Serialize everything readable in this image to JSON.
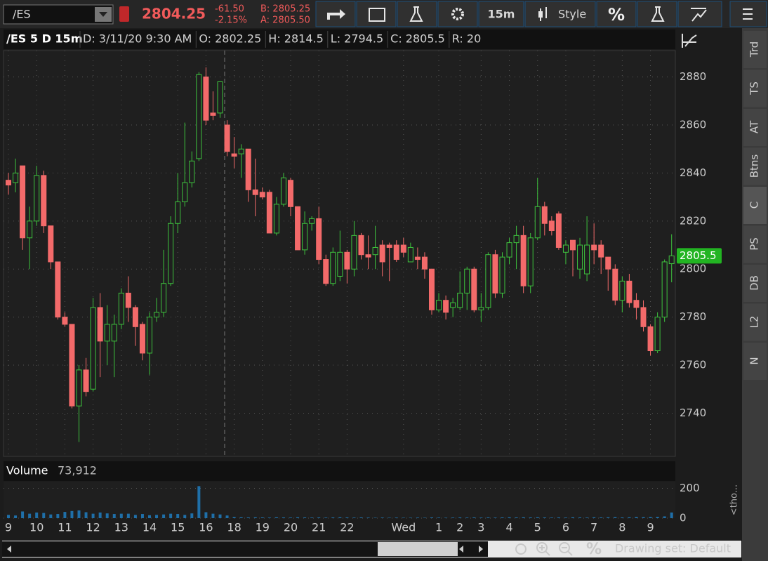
{
  "toolbar": {
    "symbol": "/ES",
    "last": "2804.25",
    "change": "-61.50",
    "change_pct": "-2.15%",
    "bid": "B: 2805.25",
    "ask": "A: 2805.50",
    "interval": "15m",
    "style": "Style",
    "percent": "%"
  },
  "header": {
    "study": "/ES 5 D 15m",
    "items": [
      "D: 3/11/20 9:30 AM",
      "O: 2802.25",
      "H: 2814.5",
      "L: 2794.5",
      "C: 2805.5",
      "R: 20"
    ]
  },
  "side_tabs": [
    "Trd",
    "TS",
    "AT",
    "Btns",
    "C",
    "PS",
    "DB",
    "L2",
    "N"
  ],
  "volume_pane_note": "<tho...",
  "footer": {
    "drawing_set": "Drawing set: Default"
  },
  "chart_data": [
    {
      "type": "candlestick",
      "up_color": "#3ec43e",
      "down_color": "#f36a6a",
      "grid": true,
      "ylim": [
        2722,
        2891
      ],
      "yticks": [
        2740,
        2760,
        2780,
        2800,
        2820,
        2840,
        2860,
        2880
      ],
      "last_price": 2805.5,
      "last_color": "#22b422",
      "categories": [
        "9",
        null,
        null,
        null,
        "10",
        null,
        null,
        null,
        "11",
        null,
        null,
        null,
        "12",
        null,
        null,
        null,
        "13",
        null,
        null,
        null,
        "14",
        null,
        null,
        null,
        "15",
        null,
        null,
        null,
        "16",
        null,
        null,
        null,
        "18",
        null,
        null,
        null,
        "19",
        null,
        null,
        null,
        "20",
        null,
        null,
        null,
        "21",
        null,
        null,
        null,
        "22",
        null,
        null,
        null,
        null,
        null,
        null,
        null,
        "Wed",
        null,
        null,
        null,
        null,
        "1",
        null,
        null,
        "2",
        null,
        null,
        "3",
        null,
        null,
        null,
        "4",
        null,
        null,
        null,
        "5",
        null,
        null,
        null,
        "6",
        null,
        null,
        null,
        "7",
        null,
        null,
        null,
        "8",
        null,
        null,
        null,
        "9",
        null,
        null,
        null
      ],
      "open": [
        2837,
        2836,
        2843,
        2813,
        2820,
        2839,
        2818,
        2803,
        2780,
        2777,
        2743,
        2758,
        2750,
        2784,
        2770,
        2770,
        2777,
        2790,
        2784,
        2777,
        2765,
        2780,
        2782,
        2794,
        2819,
        2828,
        2836,
        2846,
        2880,
        2865,
        2865,
        2860,
        2848,
        2848,
        2850,
        2833,
        2832,
        2832,
        2815,
        2827,
        2837,
        2826,
        2808,
        2819,
        2821,
        2804,
        2794,
        2797,
        2807,
        2800,
        2814,
        2806,
        2806,
        2810,
        2810,
        2810,
        2810,
        2803,
        2805,
        2805,
        2800,
        2783,
        2787,
        2784,
        2784,
        2790,
        2800,
        2783,
        2784,
        2806,
        2790,
        2805,
        2811,
        2814,
        2793,
        2813,
        2826,
        2820,
        2823,
        2807,
        2812,
        2800,
        2798,
        2810,
        2810,
        2805,
        2800,
        2787,
        2795,
        2787,
        2784,
        2776,
        2766,
        2780,
        2802.25
      ],
      "high": [
        2840,
        2846,
        2843,
        2826,
        2843,
        2841,
        2818,
        2803,
        2782,
        2777,
        2760,
        2763,
        2788,
        2790,
        2785,
        2781,
        2792,
        2797,
        2785,
        2778,
        2782,
        2788,
        2808,
        2822,
        2840,
        2861,
        2849,
        2882,
        2884,
        2874,
        2878,
        2862,
        2855,
        2852,
        2850,
        2846,
        2834,
        2833,
        2830,
        2840,
        2838,
        2826,
        2824,
        2822,
        2826,
        2806,
        2809,
        2816,
        2808,
        2820,
        2815,
        2814,
        2818,
        2812,
        2811,
        2812,
        2813,
        2811,
        2809,
        2807,
        2800,
        2790,
        2789,
        2788,
        2799,
        2801,
        2801,
        2790,
        2807,
        2808,
        2807,
        2813,
        2818,
        2818,
        2815,
        2838,
        2828,
        2822,
        2824,
        2812,
        2812,
        2813,
        2822,
        2819,
        2812,
        2805,
        2802,
        2797,
        2798,
        2790,
        2787,
        2777,
        2782,
        2804,
        2814.5
      ],
      "low": [
        2831,
        2832,
        2808,
        2800,
        2818,
        2815,
        2800,
        2779,
        2776,
        2742,
        2728,
        2747,
        2749,
        2755,
        2760,
        2755,
        2775,
        2778,
        2768,
        2762,
        2756,
        2778,
        2780,
        2793,
        2815,
        2826,
        2834,
        2845,
        2860,
        2862,
        2863,
        2847,
        2842,
        2838,
        2828,
        2822,
        2829,
        2815,
        2814,
        2826,
        2822,
        2808,
        2806,
        2816,
        2802,
        2793,
        2793,
        2795,
        2794,
        2797,
        2804,
        2800,
        2800,
        2797,
        2795,
        2803,
        2805,
        2803,
        2800,
        2796,
        2781,
        2782,
        2779,
        2780,
        2783,
        2783,
        2782,
        2778,
        2783,
        2788,
        2788,
        2802,
        2800,
        2790,
        2790,
        2812,
        2814,
        2814,
        2808,
        2802,
        2797,
        2796,
        2795,
        2802,
        2798,
        2791,
        2785,
        2782,
        2784,
        2779,
        2774,
        2764,
        2765,
        2778,
        2794.5
      ],
      "close": [
        2835,
        2840,
        2813,
        2820,
        2839,
        2818,
        2803,
        2780,
        2777,
        2743,
        2758,
        2749,
        2784,
        2770,
        2777,
        2777,
        2790,
        2784,
        2776,
        2765,
        2780,
        2782,
        2794,
        2819,
        2828,
        2836,
        2845,
        2881,
        2862,
        2864,
        2878,
        2849,
        2847,
        2850,
        2833,
        2831,
        2830,
        2815,
        2827,
        2838,
        2826,
        2808,
        2819,
        2821,
        2804,
        2794,
        2807,
        2807,
        2800,
        2814,
        2806,
        2805,
        2809,
        2803,
        2809,
        2804,
        2807,
        2809,
        2804,
        2800,
        2783,
        2787,
        2782,
        2786,
        2790,
        2800,
        2783,
        2784,
        2806,
        2790,
        2805,
        2811,
        2814,
        2793,
        2813,
        2826,
        2819,
        2816,
        2809,
        2810,
        2808,
        2810,
        2810,
        2808,
        2805,
        2800,
        2787,
        2795,
        2786,
        2784,
        2776,
        2766,
        2780,
        2803,
        2805.5
      ]
    },
    {
      "type": "bar",
      "title": "Volume",
      "total": "73,912",
      "color": "#1f6fa8",
      "ylim": [
        0,
        245
      ],
      "yticks": [
        0,
        200
      ],
      "values": [
        22,
        18,
        45,
        30,
        38,
        35,
        25,
        28,
        42,
        48,
        52,
        40,
        30,
        38,
        32,
        28,
        30,
        30,
        22,
        28,
        20,
        22,
        25,
        30,
        28,
        22,
        32,
        215,
        40,
        30,
        25,
        18,
        8,
        6,
        5,
        6,
        5,
        4,
        6,
        5,
        4,
        6,
        5,
        4,
        5,
        4,
        5,
        6,
        5,
        4,
        5,
        4,
        3,
        4,
        3,
        4,
        3,
        3,
        4,
        3,
        5,
        4,
        3,
        4,
        5,
        4,
        5,
        4,
        5,
        4,
        5,
        6,
        5,
        6,
        5,
        6,
        5,
        4,
        5,
        4,
        6,
        5,
        4,
        6,
        5,
        6,
        7,
        5,
        6,
        8,
        7,
        8,
        9,
        12,
        38
      ]
    }
  ]
}
